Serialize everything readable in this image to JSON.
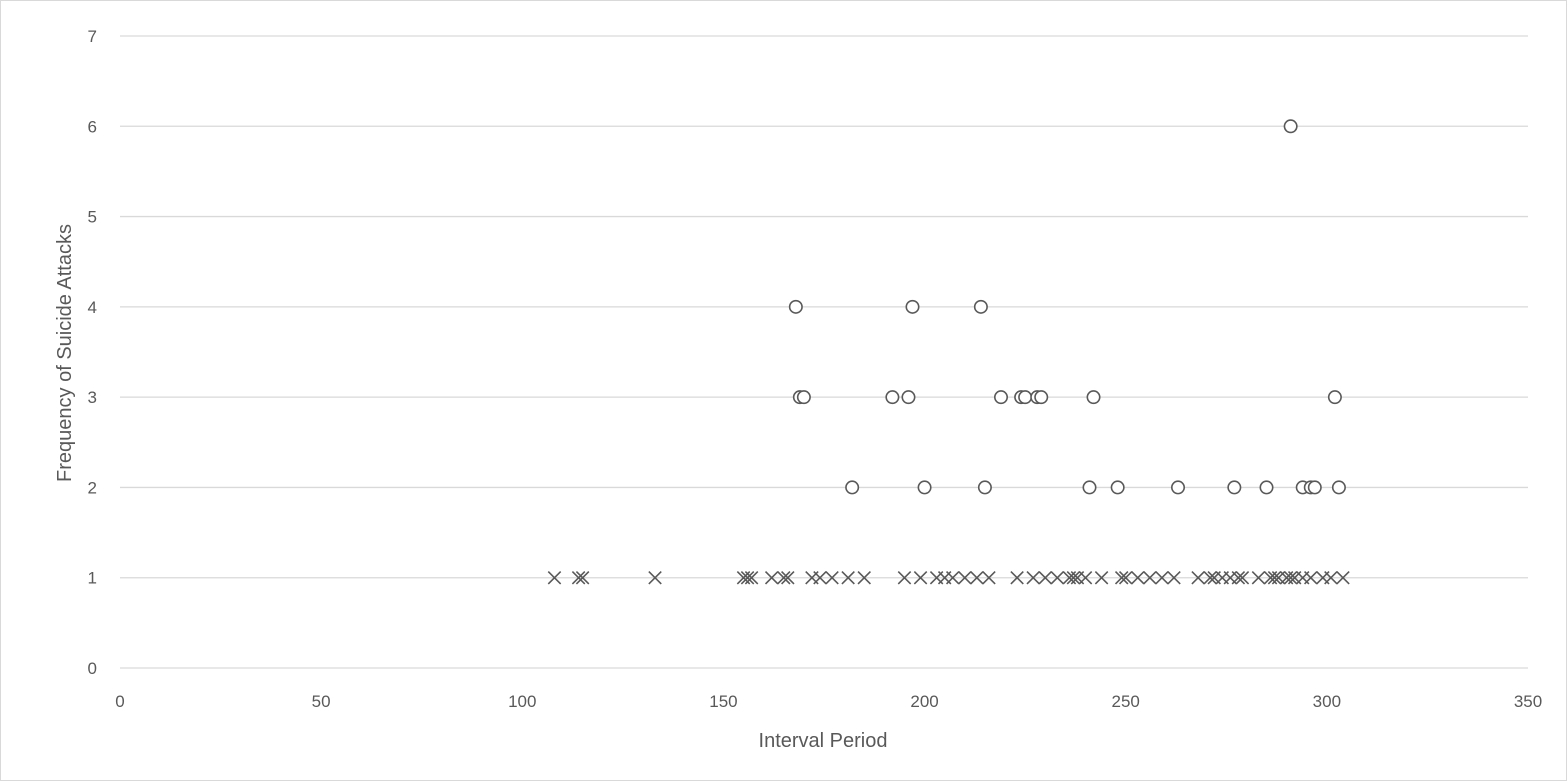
{
  "chart_data": {
    "type": "scatter",
    "title": "",
    "xlabel": "Interval Period",
    "ylabel": "Frequency of Suicide Attacks",
    "xlim": [
      0,
      350
    ],
    "ylim": [
      0,
      7
    ],
    "x_ticks": [
      0,
      50,
      100,
      150,
      200,
      250,
      300,
      350
    ],
    "y_ticks": [
      0,
      1,
      2,
      3,
      4,
      5,
      6,
      7
    ],
    "grid": true,
    "legend": "none",
    "series": [
      {
        "marker": "x",
        "color": "#595959",
        "points": [
          [
            108,
            1
          ],
          [
            114,
            1
          ],
          [
            115,
            1
          ],
          [
            133,
            1
          ],
          [
            155,
            1
          ],
          [
            156,
            1
          ],
          [
            157,
            1
          ],
          [
            162,
            1
          ],
          [
            165,
            1
          ],
          [
            166,
            1
          ],
          [
            172,
            1
          ],
          [
            174,
            1
          ],
          [
            177,
            1
          ],
          [
            181,
            1
          ],
          [
            185,
            1
          ],
          [
            195,
            1
          ],
          [
            199,
            1
          ],
          [
            203,
            1
          ],
          [
            205,
            1
          ],
          [
            207,
            1
          ],
          [
            210,
            1
          ],
          [
            213,
            1
          ],
          [
            216,
            1
          ],
          [
            223,
            1
          ],
          [
            227,
            1
          ],
          [
            230,
            1
          ],
          [
            233,
            1
          ],
          [
            236,
            1
          ],
          [
            237,
            1
          ],
          [
            238,
            1
          ],
          [
            240,
            1
          ],
          [
            244,
            1
          ],
          [
            249,
            1
          ],
          [
            250,
            1
          ],
          [
            253,
            1
          ],
          [
            256,
            1
          ],
          [
            259,
            1
          ],
          [
            262,
            1
          ],
          [
            268,
            1
          ],
          [
            271,
            1
          ],
          [
            272,
            1
          ],
          [
            274,
            1
          ],
          [
            276,
            1
          ],
          [
            278,
            1
          ],
          [
            279,
            1
          ],
          [
            283,
            1
          ],
          [
            286,
            1
          ],
          [
            287,
            1
          ],
          [
            288,
            1
          ],
          [
            290,
            1
          ],
          [
            291,
            1
          ],
          [
            292,
            1
          ],
          [
            294,
            1
          ],
          [
            296,
            1
          ],
          [
            299,
            1
          ],
          [
            301,
            1
          ],
          [
            304,
            1
          ]
        ]
      },
      {
        "marker": "o",
        "color": "#595959",
        "points": [
          [
            291,
            6
          ],
          [
            168,
            4
          ],
          [
            197,
            4
          ],
          [
            214,
            4
          ],
          [
            169,
            3
          ],
          [
            170,
            3
          ],
          [
            192,
            3
          ],
          [
            196,
            3
          ],
          [
            219,
            3
          ],
          [
            224,
            3
          ],
          [
            225,
            3
          ],
          [
            228,
            3
          ],
          [
            229,
            3
          ],
          [
            242,
            3
          ],
          [
            302,
            3
          ],
          [
            182,
            2
          ],
          [
            200,
            2
          ],
          [
            215,
            2
          ],
          [
            241,
            2
          ],
          [
            248,
            2
          ],
          [
            263,
            2
          ],
          [
            277,
            2
          ],
          [
            285,
            2
          ],
          [
            294,
            2
          ],
          [
            296,
            2
          ],
          [
            297,
            2
          ],
          [
            303,
            2
          ]
        ]
      }
    ]
  }
}
